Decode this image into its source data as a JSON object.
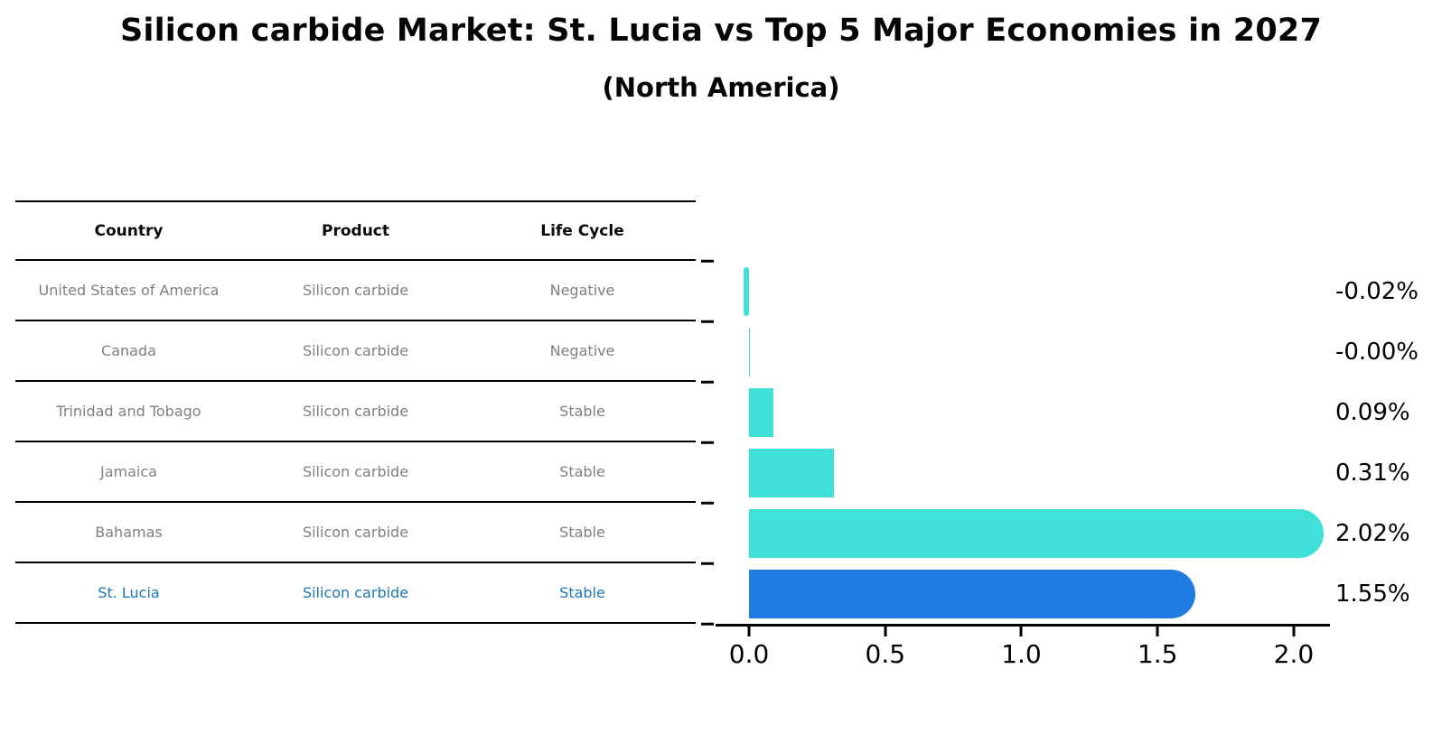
{
  "title": "Silicon carbide Market: St. Lucia vs Top 5 Major Economies in 2027",
  "subtitle": "(North America)",
  "table": {
    "headers": {
      "country": "Country",
      "product": "Product",
      "life_cycle": "Life Cycle"
    },
    "rows": [
      {
        "country": "United States of America",
        "product": "Silicon carbide",
        "life_cycle": "Negative",
        "highlighted": false
      },
      {
        "country": "Canada",
        "product": "Silicon carbide",
        "life_cycle": "Negative",
        "highlighted": false
      },
      {
        "country": "Trinidad and Tobago",
        "product": "Silicon carbide",
        "life_cycle": "Stable",
        "highlighted": false
      },
      {
        "country": "Jamaica",
        "product": "Silicon carbide",
        "life_cycle": "Stable",
        "highlighted": false
      },
      {
        "country": "Bahamas",
        "product": "Silicon carbide",
        "life_cycle": "Stable",
        "highlighted": false
      },
      {
        "country": "St. Lucia",
        "product": "Silicon carbide",
        "life_cycle": "Stable",
        "highlighted": true
      }
    ]
  },
  "chart_data": {
    "type": "bar",
    "orientation": "horizontal",
    "title": "Silicon carbide Market: St. Lucia vs Top 5 Major Economies in 2027 (North America)",
    "categories": [
      "United States of America",
      "Canada",
      "Trinidad and Tobago",
      "Jamaica",
      "Bahamas",
      "St. Lucia"
    ],
    "values": [
      -0.02,
      -0.0,
      0.09,
      0.31,
      2.02,
      1.55
    ],
    "value_labels": [
      "-0.02%",
      "-0.00%",
      "0.09%",
      "0.31%",
      "2.02%",
      "1.55%"
    ],
    "xticks": [
      0.0,
      0.5,
      1.0,
      1.5,
      2.0
    ],
    "xtick_labels": [
      "0.0",
      "0.5",
      "1.0",
      "1.5",
      "2.0"
    ],
    "xlim": [
      -0.123,
      2.133
    ],
    "grid": false,
    "legend": "none",
    "highlight_index": 5,
    "bar_color": "#3ee0d8",
    "highlight_bar_color": "#1f7be0",
    "highlight_text_color": "#1f77b4",
    "label_color": "#000000",
    "table_text_color": "#7f7f7f"
  }
}
